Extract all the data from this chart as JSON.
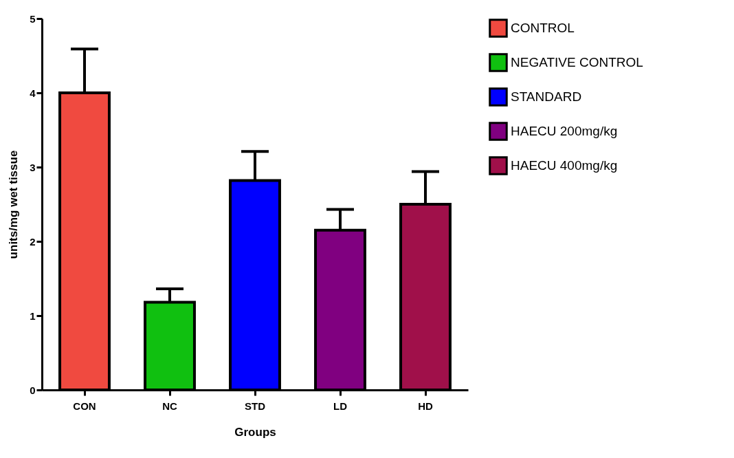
{
  "chart_data": {
    "type": "bar",
    "categories": [
      "CON",
      "NC",
      "STD",
      "LD",
      "HD"
    ],
    "xlabel": "Groups",
    "ylabel": "units/mg wet tissue",
    "ylim": [
      0,
      5
    ],
    "yticks": [
      0,
      1,
      2,
      3,
      4,
      5
    ],
    "grid": false,
    "legend": "right",
    "series": [
      {
        "name": "CONTROL",
        "color": "#f04a40",
        "values": [
          4.0,
          null,
          null,
          null,
          null
        ],
        "errors": [
          [
            4.0,
            4.59
          ],
          null,
          null,
          null,
          null
        ]
      },
      {
        "name": "NEGATIVE CONTROL",
        "color": "#10c010",
        "values": [
          null,
          1.18,
          null,
          null,
          null
        ],
        "errors": [
          null,
          [
            1.18,
            1.36
          ],
          null,
          null,
          null
        ]
      },
      {
        "name": "STANDARD",
        "color": "#0000ff",
        "values": [
          null,
          null,
          2.82,
          null,
          null
        ],
        "errors": [
          null,
          null,
          [
            2.82,
            3.21
          ],
          null,
          null
        ]
      },
      {
        "name": "HAECU 200mg/kg",
        "color": "#800080",
        "values": [
          null,
          null,
          null,
          2.15,
          null
        ],
        "errors": [
          null,
          null,
          null,
          [
            2.15,
            2.43
          ],
          null
        ]
      },
      {
        "name": "HAECU 400mg/kg",
        "color": "#a0104a",
        "values": [
          null,
          null,
          null,
          null,
          2.5
        ],
        "errors": [
          null,
          null,
          null,
          null,
          [
            2.5,
            2.94
          ]
        ]
      }
    ]
  }
}
